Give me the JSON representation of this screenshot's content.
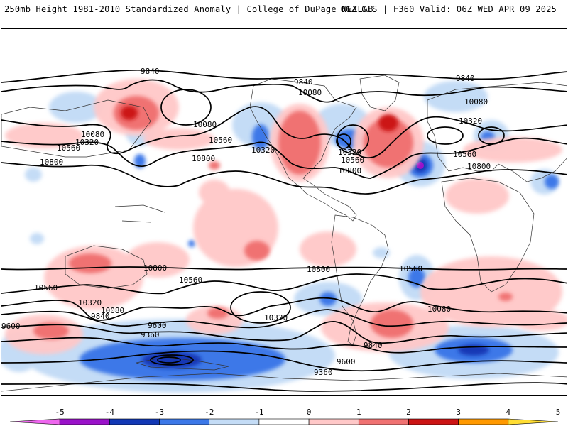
{
  "header": {
    "left_title": "250mb Height 1981-2010 Standardized Anomaly | College of DuPage NEXLAB",
    "right_title": "06Z GFS | F360 Valid: 06Z WED APR 09 2025"
  },
  "contour_labels": [
    "9840",
    "9840",
    "9840",
    "10080",
    "10080",
    "10080",
    "10080",
    "10320",
    "10320",
    "10320",
    "10320",
    "10560",
    "10560",
    "10560",
    "10560",
    "10800",
    "10800",
    "10800",
    "10800",
    "10560",
    "10560",
    "10560",
    "10800",
    "10800",
    "10320",
    "10320",
    "10080",
    "10080",
    "9840",
    "9840",
    "9600",
    "9600",
    "9600",
    "9360",
    "9360"
  ],
  "colorbar": {
    "ticks": [
      "-5",
      "-4",
      "-3",
      "-2",
      "-1",
      "0",
      "1",
      "2",
      "3",
      "4",
      "5"
    ],
    "colors": [
      "#ee66ee",
      "#9a12c9",
      "#1238b5",
      "#3c78e8",
      "#c4dcf6",
      "#ffffff",
      "#ffc8c8",
      "#f07272",
      "#cc1414",
      "#ff9900",
      "#ffdd33"
    ]
  }
}
